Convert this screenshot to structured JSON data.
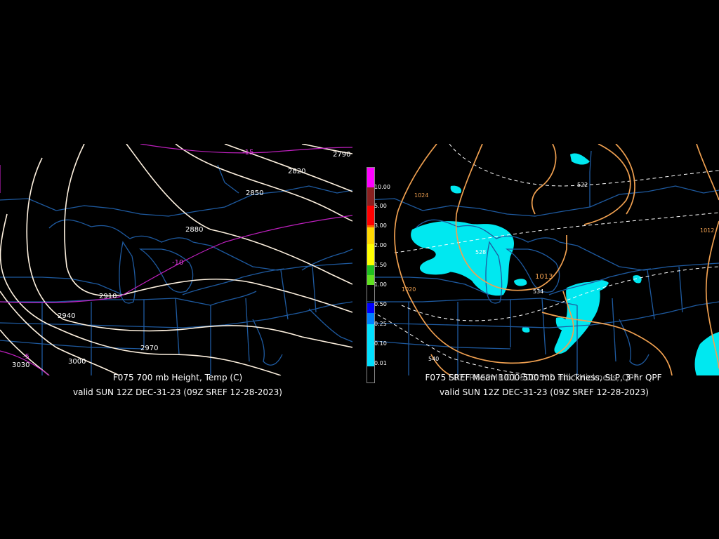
{
  "left_map": {
    "caption": "F075 700 mb Height, Temp (C)",
    "valid": "valid SUN 12Z DEC-31-23 (09Z SREF 12-28-2023)",
    "height_labels": [
      "2790",
      "2820",
      "2850",
      "2880",
      "2910",
      "2940",
      "2970",
      "3000",
      "3030"
    ],
    "temp_labels": [
      "-15",
      "-10",
      "-5"
    ],
    "colors": {
      "height": "#fff2e0",
      "temp": "#c020c0",
      "borders": "#1e5aa0"
    }
  },
  "right_map": {
    "caption": "F075 SREF Mean 1000-500 mb Thickness, SLP, 3-hr QPF",
    "caption_overlay": "F07TR6SPMBl01-500-500 mb THickness, QPF",
    "valid": "valid SUN 12Z DEC-31-23 (09Z SREF 12-28-2023)",
    "pressure_labels": [
      "1024",
      "1020",
      "1013",
      "1012"
    ],
    "thickness_labels": [
      "522",
      "528",
      "534",
      "540"
    ],
    "colors": {
      "pressure": "#f0a050",
      "thickness": "#ffffff",
      "qpf": "#00e8f0",
      "borders": "#1e5aa0"
    }
  },
  "colorbar": {
    "labels": [
      "10.00",
      "5.00",
      "3.00",
      "2.00",
      "1.50",
      "1.00",
      "0.50",
      "0.25",
      "0.10",
      "0.01"
    ],
    "colors": [
      "#ff00ff",
      "#8b2020",
      "#ff0000",
      "#ff6000",
      "#ffd800",
      "#ffff00",
      "#20c020",
      "#60e020",
      "#0000ff",
      "#0080ff",
      "#00e0ff",
      "#000000"
    ]
  }
}
